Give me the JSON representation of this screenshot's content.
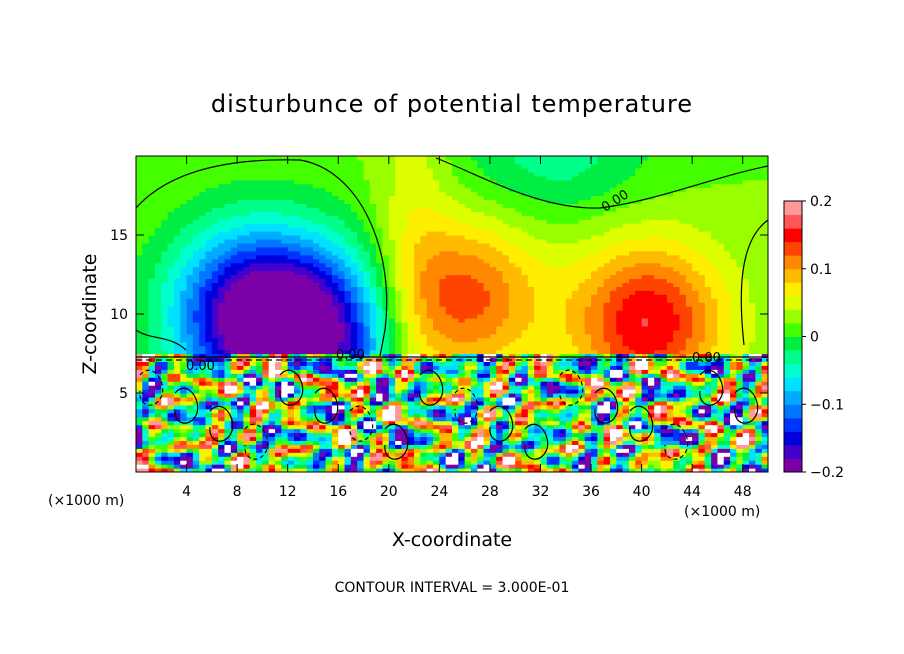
{
  "chart_data": {
    "type": "heatmap",
    "title": "disturbunce of potential temperature",
    "xlabel": "X-coordinate",
    "ylabel": "Z-coordinate",
    "x_unit": "(×1000 m)",
    "x_unit_right": "(×1000 m)",
    "footer": "CONTOUR INTERVAL = 3.000E-01",
    "xlim": [
      0,
      50
    ],
    "ylim": [
      0,
      20
    ],
    "x_ticks": [
      4,
      8,
      12,
      16,
      20,
      24,
      28,
      32,
      36,
      40,
      44,
      48
    ],
    "x_tick_labels": [
      "4",
      "8",
      "12",
      "16",
      "20",
      "24",
      "28",
      "32",
      "36",
      "40",
      "44",
      "48"
    ],
    "y_ticks": [
      5,
      10,
      15
    ],
    "y_tick_labels": [
      "5",
      "10",
      "15"
    ],
    "colorbar": {
      "range": [
        -0.2,
        0.2
      ],
      "ticks": [
        0.2,
        0.1,
        0,
        -0.1,
        -0.2
      ],
      "tick_labels": [
        "0.2",
        "0.1",
        "0",
        "−0.1",
        "−0.2"
      ],
      "colors": [
        "#7b00a8",
        "#4400cc",
        "#0000dd",
        "#0033ff",
        "#0077ff",
        "#00aaff",
        "#00e0ff",
        "#00ffcc",
        "#00ff88",
        "#00ee44",
        "#44ff00",
        "#99ff00",
        "#ddff00",
        "#ffee00",
        "#ffbb00",
        "#ff8800",
        "#ff4400",
        "#ff0000",
        "#ff5555",
        "#ff9999"
      ]
    },
    "contour_labels": [
      "0.00",
      "0.00",
      "0.00",
      "0.00"
    ],
    "upper_field": {
      "description_values": "anomaly at z>7.5 km",
      "negative_centers": [
        {
          "x": 9,
          "z": 10,
          "amp": -0.19
        },
        {
          "x": 14.5,
          "z": 8.5,
          "amp": -0.17
        }
      ],
      "positive_centers": [
        {
          "x": 26,
          "z": 11,
          "amp": 0.11
        },
        {
          "x": 40.5,
          "z": 9.5,
          "amp": 0.14
        }
      ]
    }
  }
}
